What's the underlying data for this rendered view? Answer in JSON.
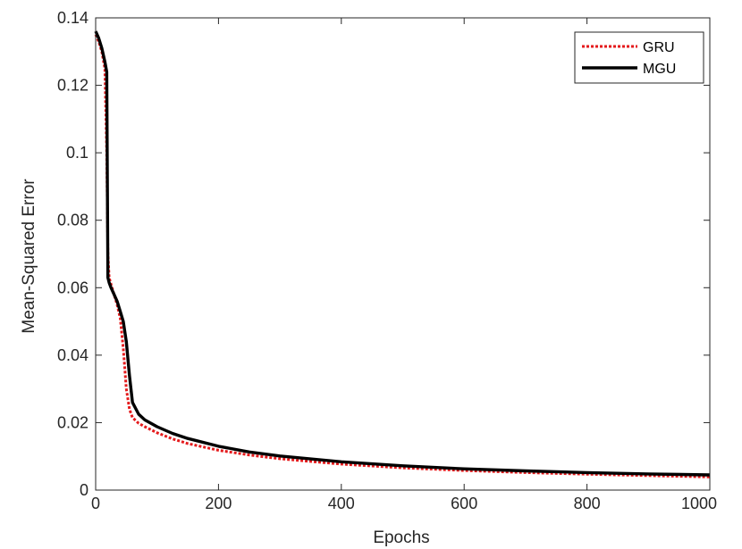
{
  "chart_data": {
    "type": "line",
    "title": "",
    "xlabel": "Epochs",
    "ylabel": "Mean-Squared Error",
    "xlim": [
      0,
      1000
    ],
    "ylim": [
      0,
      0.14
    ],
    "xticks": [
      0,
      200,
      400,
      600,
      800,
      1000
    ],
    "yticks": [
      0,
      0.02,
      0.04,
      0.06,
      0.08,
      0.1,
      0.12,
      0.14
    ],
    "xtick_labels": [
      "0",
      "200",
      "400",
      "600",
      "800",
      "1000"
    ],
    "ytick_labels": [
      "0",
      "0.02",
      "0.04",
      "0.06",
      "0.08",
      "0.1",
      "0.12",
      "0.14"
    ],
    "grid": false,
    "legend_position": "top-right",
    "series": [
      {
        "name": "GRU",
        "color": "#e41a1c",
        "style": "dotted",
        "x": [
          0,
          5,
          10,
          15,
          18,
          20,
          22,
          25,
          30,
          35,
          40,
          45,
          50,
          55,
          60,
          70,
          80,
          100,
          125,
          150,
          200,
          250,
          300,
          400,
          500,
          600,
          700,
          800,
          900,
          1000
        ],
        "y": [
          0.135,
          0.133,
          0.13,
          0.125,
          0.1,
          0.07,
          0.063,
          0.061,
          0.058,
          0.055,
          0.051,
          0.042,
          0.03,
          0.024,
          0.0215,
          0.0198,
          0.0188,
          0.017,
          0.0152,
          0.0138,
          0.0118,
          0.0104,
          0.0093,
          0.0077,
          0.0066,
          0.0058,
          0.0052,
          0.0047,
          0.0043,
          0.0039
        ]
      },
      {
        "name": "MGU",
        "color": "#000000",
        "style": "solid",
        "x": [
          0,
          5,
          10,
          15,
          18,
          20,
          22,
          25,
          30,
          35,
          40,
          45,
          50,
          55,
          60,
          70,
          80,
          100,
          125,
          150,
          200,
          250,
          300,
          400,
          500,
          600,
          700,
          800,
          900,
          1000
        ],
        "y": [
          0.136,
          0.134,
          0.131,
          0.127,
          0.124,
          0.063,
          0.0615,
          0.06,
          0.058,
          0.056,
          0.053,
          0.05,
          0.044,
          0.034,
          0.026,
          0.0225,
          0.0208,
          0.0188,
          0.0168,
          0.0153,
          0.013,
          0.0113,
          0.0101,
          0.0084,
          0.0072,
          0.0063,
          0.0057,
          0.0052,
          0.0048,
          0.0045
        ]
      }
    ]
  }
}
